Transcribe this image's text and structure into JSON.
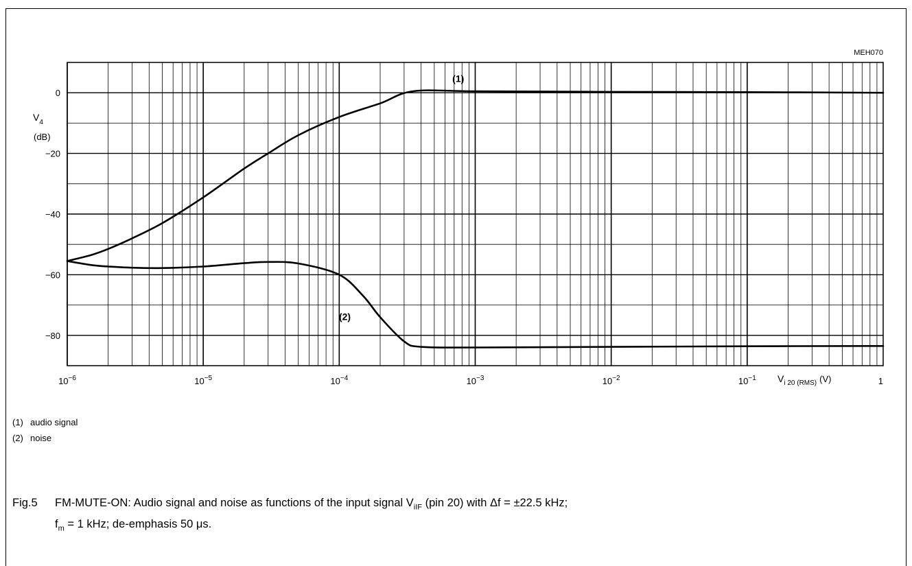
{
  "figure_code": "MEH070",
  "notes": [
    {
      "num": "(1)",
      "text": "audio signal"
    },
    {
      "num": "(2)",
      "text": "noise"
    }
  ],
  "caption": {
    "fig": "Fig.5",
    "line1_a": "FM-MUTE-ON: Audio signal and noise as functions of the input signal V",
    "line1_sub": "iIF",
    "line1_b": " (pin 20) with Δf = ±22.5 kHz;",
    "line2_a": "f",
    "line2_sub": "m",
    "line2_b": " = 1 kHz; de-emphasis 50 μs."
  },
  "chart_data": {
    "type": "line",
    "x_scale": "log",
    "xlim": [
      1e-06,
      1
    ],
    "ylim": [
      -90,
      10
    ],
    "y_ticks": [
      0,
      -20,
      -40,
      -60,
      -80
    ],
    "x_tick_labels": [
      {
        "value": 1e-06,
        "base": "10",
        "exp": "−6"
      },
      {
        "value": 1e-05,
        "base": "10",
        "exp": "−5"
      },
      {
        "value": 0.0001,
        "base": "10",
        "exp": "−4"
      },
      {
        "value": 0.001,
        "base": "10",
        "exp": "−3"
      },
      {
        "value": 0.01,
        "base": "10",
        "exp": "−2"
      },
      {
        "value": 0.1,
        "base": "10",
        "exp": "−1"
      },
      {
        "value": 1,
        "base": "1",
        "exp": ""
      }
    ],
    "ylabel": {
      "main": "V",
      "sub": "4",
      "unit": "(dB)"
    },
    "xlabel": {
      "main": "V",
      "sub": "i 20 (RMS)",
      "unit": "(V)"
    },
    "grid": true,
    "series": [
      {
        "name": "(1)",
        "x": [
          1e-06,
          1.5e-06,
          2e-06,
          3e-06,
          5e-06,
          1e-05,
          2e-05,
          3e-05,
          5e-05,
          0.0001,
          0.0002,
          0.00035,
          0.001,
          0.01,
          0.1,
          1
        ],
        "y": [
          -55.5,
          -53.5,
          -51.5,
          -48,
          -43,
          -34.5,
          -25,
          -20,
          -14,
          -8,
          -3.5,
          0.5,
          0.5,
          0.3,
          0.2,
          0
        ]
      },
      {
        "name": "(2)",
        "x": [
          1e-06,
          1.5e-06,
          2e-06,
          3e-06,
          5e-06,
          1e-05,
          2e-05,
          3e-05,
          5e-05,
          0.0001,
          0.00015,
          0.0002,
          0.0003,
          0.0004,
          0.001,
          0.01,
          0.1,
          1
        ],
        "y": [
          -55.5,
          -56.8,
          -57.3,
          -57.7,
          -57.8,
          -57.3,
          -56.2,
          -55.8,
          -56.3,
          -60,
          -67,
          -74,
          -82,
          -83.8,
          -84,
          -83.8,
          -83.6,
          -83.5
        ]
      }
    ],
    "annotations": [
      {
        "text": "(1)",
        "x": 0.00075,
        "y": 3.5
      },
      {
        "text": "(2)",
        "x": 0.00011,
        "y": -75
      }
    ]
  }
}
